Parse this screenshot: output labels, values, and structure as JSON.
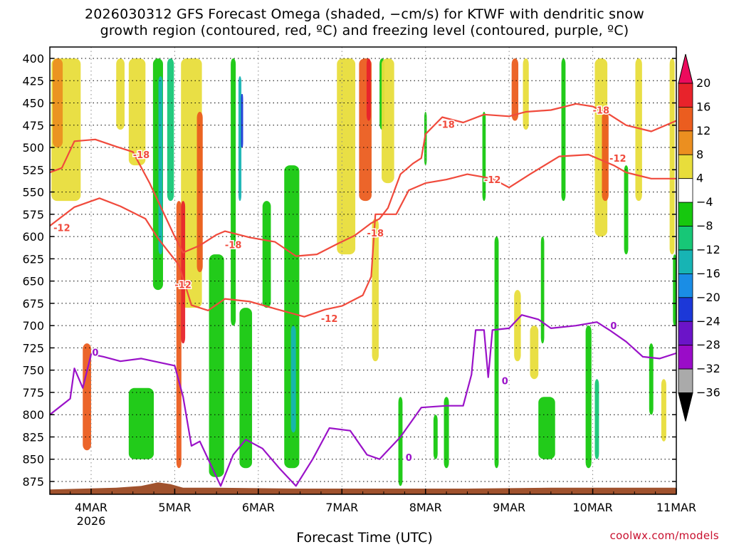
{
  "title_line1": "2026030312 GFS Forecast Omega (shaded, −cm/s) for KTWF with dendritic snow",
  "title_line2": "growth region (contoured, red, ºC) and freezing level (contoured, purple, ºC)",
  "xlabel": "Forecast Time (UTC)",
  "credit": "coolwx.com/models",
  "colorbar": {
    "labels": [
      "20",
      "16",
      "12",
      "8",
      "4",
      "−4",
      "−8",
      "−12",
      "−16",
      "−20",
      "−24",
      "−28",
      "−32",
      "−36"
    ],
    "colors": [
      "#ec0b5d",
      "#e8232b",
      "#eb5d1f",
      "#eb8f20",
      "#e3a32c",
      "#e8dd3b",
      "#ffffff",
      "#16c80e",
      "#17c777",
      "#17b4b4",
      "#1a8de5",
      "#1c38d8",
      "#6b14c8",
      "#9a0cc8",
      "#aaaaaa"
    ]
  },
  "chart_data": {
    "type": "heatmap",
    "title": "2026030312 GFS Forecast Omega (shaded, −cm/s) for KTWF with dendritic snow growth region (contoured, red, ºC) and freezing level (contoured, purple, ºC)",
    "xlabel": "Forecast Time (UTC)",
    "ylabel": "",
    "y_reversed": true,
    "ylim": [
      400,
      885
    ],
    "y_ticks": [
      400,
      425,
      450,
      475,
      500,
      525,
      550,
      575,
      600,
      625,
      650,
      675,
      700,
      725,
      750,
      775,
      800,
      825,
      850,
      875
    ],
    "x_ticks": [
      {
        "t": 0.5,
        "label": "4MAR",
        "sub": "2026"
      },
      {
        "t": 1.5,
        "label": "5MAR"
      },
      {
        "t": 2.5,
        "label": "6MAR"
      },
      {
        "t": 3.5,
        "label": "7MAR"
      },
      {
        "t": 4.5,
        "label": "8MAR"
      },
      {
        "t": 5.5,
        "label": "9MAR"
      },
      {
        "t": 6.5,
        "label": "10MAR"
      },
      {
        "t": 7.5,
        "label": "11MAR"
      }
    ],
    "xlim": [
      0,
      7.5
    ],
    "grid": true,
    "contours": [
      {
        "name": "-18",
        "color": "#f04a3c",
        "points": [
          [
            0,
            528
          ],
          [
            0.15,
            523
          ],
          [
            0.3,
            493
          ],
          [
            0.55,
            491
          ],
          [
            0.8,
            499
          ],
          [
            1.0,
            505
          ],
          [
            1.2,
            540
          ],
          [
            1.35,
            570
          ],
          [
            1.5,
            600
          ],
          [
            1.6,
            618
          ],
          [
            1.8,
            610
          ],
          [
            2.0,
            598
          ],
          [
            2.1,
            594
          ],
          [
            2.4,
            601
          ],
          [
            2.7,
            606
          ],
          [
            2.95,
            622
          ],
          [
            3.2,
            620
          ],
          [
            3.45,
            608
          ],
          [
            3.65,
            599
          ],
          [
            3.85,
            585
          ],
          [
            3.95,
            580
          ],
          [
            4.05,
            568
          ],
          [
            4.2,
            530
          ],
          [
            4.35,
            518
          ],
          [
            4.45,
            512
          ],
          [
            4.5,
            485
          ],
          [
            4.7,
            466
          ],
          [
            4.95,
            472
          ],
          [
            5.2,
            463
          ],
          [
            5.5,
            465
          ],
          [
            5.7,
            460
          ],
          [
            6.0,
            458
          ],
          [
            6.3,
            451
          ],
          [
            6.5,
            454
          ],
          [
            6.7,
            463
          ],
          [
            6.9,
            475
          ],
          [
            7.2,
            482
          ],
          [
            7.5,
            470
          ]
        ]
      },
      {
        "name": "-12",
        "color": "#f04a3c",
        "points": [
          [
            0,
            588
          ],
          [
            0.3,
            567
          ],
          [
            0.6,
            557
          ],
          [
            0.85,
            566
          ],
          [
            1.15,
            580
          ],
          [
            1.3,
            602
          ],
          [
            1.55,
            632
          ],
          [
            1.7,
            677
          ],
          [
            1.9,
            683
          ],
          [
            2.1,
            670
          ],
          [
            2.4,
            673
          ],
          [
            2.7,
            681
          ],
          [
            3.05,
            690
          ],
          [
            3.3,
            682
          ],
          [
            3.5,
            678
          ],
          [
            3.75,
            666
          ],
          [
            3.85,
            645
          ],
          [
            3.9,
            575
          ],
          [
            4.15,
            575
          ],
          [
            4.3,
            548
          ],
          [
            4.5,
            540
          ],
          [
            4.75,
            536
          ],
          [
            5.0,
            530
          ],
          [
            5.3,
            535
          ],
          [
            5.5,
            545
          ],
          [
            5.75,
            530
          ],
          [
            6.1,
            510
          ],
          [
            6.45,
            508
          ],
          [
            6.75,
            520
          ],
          [
            6.9,
            528
          ],
          [
            7.2,
            535
          ],
          [
            7.5,
            535
          ]
        ]
      },
      {
        "name": "0",
        "color": "#9a12c8",
        "points": [
          [
            0,
            800
          ],
          [
            0.25,
            782
          ],
          [
            0.3,
            748
          ],
          [
            0.4,
            770
          ],
          [
            0.5,
            732
          ],
          [
            0.65,
            735
          ],
          [
            0.85,
            740
          ],
          [
            1.1,
            737
          ],
          [
            1.35,
            742
          ],
          [
            1.5,
            745
          ],
          [
            1.6,
            780
          ],
          [
            1.7,
            835
          ],
          [
            1.8,
            830
          ],
          [
            1.95,
            860
          ],
          [
            2.05,
            880
          ],
          [
            2.2,
            845
          ],
          [
            2.35,
            828
          ],
          [
            2.55,
            838
          ],
          [
            2.75,
            860
          ],
          [
            2.95,
            880
          ],
          [
            3.15,
            850
          ],
          [
            3.35,
            815
          ],
          [
            3.6,
            818
          ],
          [
            3.8,
            845
          ],
          [
            3.95,
            850
          ],
          [
            4.2,
            825
          ],
          [
            4.45,
            792
          ],
          [
            4.75,
            790
          ],
          [
            4.95,
            790
          ],
          [
            5.05,
            755
          ],
          [
            5.1,
            705
          ],
          [
            5.2,
            705
          ],
          [
            5.25,
            758
          ],
          [
            5.3,
            705
          ],
          [
            5.5,
            703
          ],
          [
            5.65,
            688
          ],
          [
            5.85,
            693
          ],
          [
            6.0,
            703
          ],
          [
            6.3,
            700
          ],
          [
            6.55,
            696
          ],
          [
            6.7,
            705
          ],
          [
            6.9,
            718
          ],
          [
            7.1,
            735
          ],
          [
            7.3,
            737
          ],
          [
            7.5,
            731
          ]
        ]
      }
    ],
    "contour_labels": [
      {
        "text": "-18",
        "t": 1.1,
        "p": 508,
        "color": "#f04a3c"
      },
      {
        "text": "-18",
        "t": 2.2,
        "p": 609,
        "color": "#f04a3c"
      },
      {
        "text": "-18",
        "t": 3.9,
        "p": 596,
        "color": "#f04a3c"
      },
      {
        "text": "-18",
        "t": 4.75,
        "p": 474,
        "color": "#f04a3c"
      },
      {
        "text": "-18",
        "t": 6.6,
        "p": 458,
        "color": "#f04a3c"
      },
      {
        "text": "-12",
        "t": 0.15,
        "p": 590,
        "color": "#f04a3c"
      },
      {
        "text": "-12",
        "t": 1.6,
        "p": 654,
        "color": "#f04a3c"
      },
      {
        "text": "-12",
        "t": 3.35,
        "p": 692,
        "color": "#f04a3c"
      },
      {
        "text": "-12",
        "t": 5.3,
        "p": 536,
        "color": "#f04a3c"
      },
      {
        "text": "-12",
        "t": 6.8,
        "p": 512,
        "color": "#f04a3c"
      },
      {
        "text": "0",
        "t": 0.55,
        "p": 730,
        "color": "#9a12c8"
      },
      {
        "text": "0",
        "t": 4.3,
        "p": 848,
        "color": "#9a12c8"
      },
      {
        "text": "0",
        "t": 5.45,
        "p": 762,
        "color": "#9a12c8"
      },
      {
        "text": "0",
        "t": 6.75,
        "p": 700,
        "color": "#9a12c8"
      }
    ],
    "shaded_regions": [
      {
        "t": 0.2,
        "p0": 400,
        "p1": 560,
        "w": 0.35,
        "level": 4
      },
      {
        "t": 0.1,
        "p0": 400,
        "p1": 500,
        "w": 0.12,
        "level": 8
      },
      {
        "t": 0.45,
        "p0": 720,
        "p1": 840,
        "w": 0.1,
        "level": 12
      },
      {
        "t": 0.85,
        "p0": 400,
        "p1": 480,
        "w": 0.1,
        "level": 4
      },
      {
        "t": 1.05,
        "p0": 400,
        "p1": 520,
        "w": 0.2,
        "level": 4
      },
      {
        "t": 1.3,
        "p0": 400,
        "p1": 660,
        "w": 0.12,
        "level": -8
      },
      {
        "t": 1.33,
        "p0": 420,
        "p1": 620,
        "w": 0.05,
        "level": -16
      },
      {
        "t": 1.45,
        "p0": 400,
        "p1": 560,
        "w": 0.08,
        "level": -12
      },
      {
        "t": 1.55,
        "p0": 560,
        "p1": 860,
        "w": 0.06,
        "level": 12
      },
      {
        "t": 1.7,
        "p0": 400,
        "p1": 680,
        "w": 0.25,
        "level": 4
      },
      {
        "t": 1.8,
        "p0": 460,
        "p1": 640,
        "w": 0.07,
        "level": 12
      },
      {
        "t": 1.6,
        "p0": 560,
        "p1": 720,
        "w": 0.05,
        "level": 16
      },
      {
        "t": 1.1,
        "p0": 770,
        "p1": 850,
        "w": 0.3,
        "level": -8
      },
      {
        "t": 2.2,
        "p0": 400,
        "p1": 700,
        "w": 0.06,
        "level": -8
      },
      {
        "t": 2.28,
        "p0": 420,
        "p1": 560,
        "w": 0.035,
        "level": -16
      },
      {
        "t": 2.3,
        "p0": 440,
        "p1": 500,
        "w": 0.015,
        "level": -24
      },
      {
        "t": 2.0,
        "p0": 620,
        "p1": 870,
        "w": 0.18,
        "level": -8
      },
      {
        "t": 2.35,
        "p0": 680,
        "p1": 860,
        "w": 0.15,
        "level": -8
      },
      {
        "t": 2.9,
        "p0": 520,
        "p1": 860,
        "w": 0.18,
        "level": -8
      },
      {
        "t": 2.92,
        "p0": 700,
        "p1": 820,
        "w": 0.06,
        "level": -16
      },
      {
        "t": 2.6,
        "p0": 560,
        "p1": 680,
        "w": 0.1,
        "level": -8
      },
      {
        "t": 3.55,
        "p0": 400,
        "p1": 620,
        "w": 0.22,
        "level": 4
      },
      {
        "t": 3.78,
        "p0": 400,
        "p1": 560,
        "w": 0.15,
        "level": 12
      },
      {
        "t": 3.82,
        "p0": 400,
        "p1": 470,
        "w": 0.05,
        "level": 16
      },
      {
        "t": 3.9,
        "p0": 580,
        "p1": 740,
        "w": 0.08,
        "level": 4
      },
      {
        "t": 3.98,
        "p0": 400,
        "p1": 480,
        "w": 0.06,
        "level": -8
      },
      {
        "t": 4.05,
        "p0": 400,
        "p1": 540,
        "w": 0.15,
        "level": 4
      },
      {
        "t": 4.2,
        "p0": 780,
        "p1": 880,
        "w": 0.05,
        "level": -8
      },
      {
        "t": 4.5,
        "p0": 460,
        "p1": 520,
        "w": 0.03,
        "level": -8
      },
      {
        "t": 4.62,
        "p0": 800,
        "p1": 850,
        "w": 0.05,
        "level": -8
      },
      {
        "t": 4.75,
        "p0": 780,
        "p1": 860,
        "w": 0.06,
        "level": -8
      },
      {
        "t": 5.2,
        "p0": 460,
        "p1": 560,
        "w": 0.04,
        "level": -8
      },
      {
        "t": 5.35,
        "p0": 600,
        "p1": 860,
        "w": 0.05,
        "level": -8
      },
      {
        "t": 5.57,
        "p0": 400,
        "p1": 470,
        "w": 0.08,
        "level": 12
      },
      {
        "t": 5.7,
        "p0": 400,
        "p1": 480,
        "w": 0.07,
        "level": 4
      },
      {
        "t": 5.6,
        "p0": 660,
        "p1": 740,
        "w": 0.08,
        "level": 4
      },
      {
        "t": 5.8,
        "p0": 700,
        "p1": 760,
        "w": 0.1,
        "level": 4
      },
      {
        "t": 5.95,
        "p0": 780,
        "p1": 850,
        "w": 0.2,
        "level": -8
      },
      {
        "t": 5.9,
        "p0": 600,
        "p1": 720,
        "w": 0.04,
        "level": -8
      },
      {
        "t": 6.15,
        "p0": 400,
        "p1": 560,
        "w": 0.05,
        "level": -8
      },
      {
        "t": 6.6,
        "p0": 400,
        "p1": 600,
        "w": 0.15,
        "level": 4
      },
      {
        "t": 6.65,
        "p0": 460,
        "p1": 560,
        "w": 0.08,
        "level": 12
      },
      {
        "t": 6.45,
        "p0": 700,
        "p1": 860,
        "w": 0.07,
        "level": -8
      },
      {
        "t": 6.55,
        "p0": 760,
        "p1": 850,
        "w": 0.05,
        "level": -12
      },
      {
        "t": 6.9,
        "p0": 520,
        "p1": 620,
        "w": 0.05,
        "level": -8
      },
      {
        "t": 7.05,
        "p0": 400,
        "p1": 560,
        "w": 0.08,
        "level": 4
      },
      {
        "t": 7.2,
        "p0": 720,
        "p1": 800,
        "w": 0.05,
        "level": -8
      },
      {
        "t": 7.35,
        "p0": 760,
        "p1": 830,
        "w": 0.06,
        "level": 4
      },
      {
        "t": 7.45,
        "p0": 400,
        "p1": 620,
        "w": 0.06,
        "level": 4
      },
      {
        "t": 7.48,
        "p0": 620,
        "p1": 700,
        "w": 0.04,
        "level": -8
      }
    ],
    "terrain_color": "#a0522d"
  }
}
